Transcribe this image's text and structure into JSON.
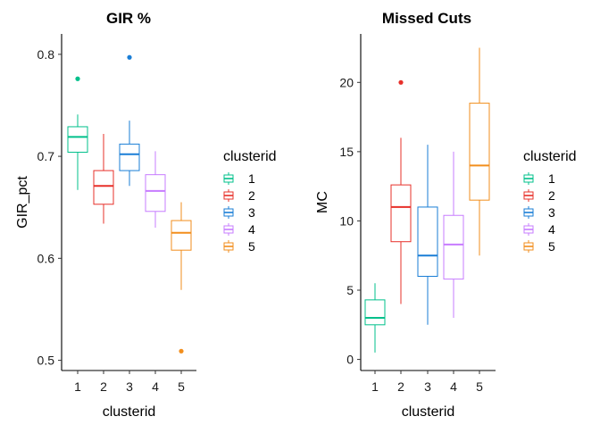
{
  "chart_data": [
    {
      "type": "box",
      "title": "GIR %",
      "xlabel": "clusterid",
      "ylabel": "GIR_pct",
      "ylim": [
        0.49,
        0.82
      ],
      "yticks": [
        "0.5",
        "0.6",
        "0.7",
        "0.8"
      ],
      "categories": [
        "1",
        "2",
        "3",
        "4",
        "5"
      ],
      "grid": false,
      "legend_position": "right",
      "legend_title": "clusterid",
      "boxes": [
        {
          "category": "1",
          "color": "#00C08B",
          "min": 0.667,
          "q1": 0.704,
          "median": 0.719,
          "q3": 0.729,
          "max": 0.741,
          "outliers": [
            0.776
          ]
        },
        {
          "category": "2",
          "color": "#E7302A",
          "min": 0.634,
          "q1": 0.653,
          "median": 0.671,
          "q3": 0.686,
          "max": 0.722,
          "outliers": []
        },
        {
          "category": "3",
          "color": "#1A7ED6",
          "min": 0.671,
          "q1": 0.686,
          "median": 0.702,
          "q3": 0.712,
          "max": 0.735,
          "outliers": [
            0.797
          ]
        },
        {
          "category": "4",
          "color": "#C77CFF",
          "min": 0.63,
          "q1": 0.646,
          "median": 0.666,
          "q3": 0.682,
          "max": 0.705,
          "outliers": []
        },
        {
          "category": "5",
          "color": "#F28E1C",
          "min": 0.569,
          "q1": 0.608,
          "median": 0.625,
          "q3": 0.637,
          "max": 0.655,
          "outliers": [
            0.509
          ]
        }
      ]
    },
    {
      "type": "box",
      "title": "Missed Cuts",
      "xlabel": "clusterid",
      "ylabel": "MC",
      "ylim": [
        -0.8,
        23.5
      ],
      "yticks": [
        "0",
        "5",
        "10",
        "15",
        "20"
      ],
      "categories": [
        "1",
        "2",
        "3",
        "4",
        "5"
      ],
      "grid": false,
      "legend_position": "right",
      "legend_title": "clusterid",
      "boxes": [
        {
          "category": "1",
          "color": "#00C08B",
          "min": 0.5,
          "q1": 2.5,
          "median": 3.0,
          "q3": 4.3,
          "max": 5.5,
          "outliers": []
        },
        {
          "category": "2",
          "color": "#E7302A",
          "min": 4.0,
          "q1": 8.5,
          "median": 11.0,
          "q3": 12.6,
          "max": 16.0,
          "outliers": [
            20.0
          ]
        },
        {
          "category": "3",
          "color": "#1A7ED6",
          "min": 2.5,
          "q1": 6.0,
          "median": 7.5,
          "q3": 11.0,
          "max": 15.5,
          "outliers": []
        },
        {
          "category": "4",
          "color": "#C77CFF",
          "min": 3.0,
          "q1": 5.8,
          "median": 8.3,
          "q3": 10.4,
          "max": 15.0,
          "outliers": []
        },
        {
          "category": "5",
          "color": "#F28E1C",
          "min": 7.5,
          "q1": 11.5,
          "median": 14.0,
          "q3": 18.5,
          "max": 22.5,
          "outliers": []
        }
      ]
    }
  ]
}
